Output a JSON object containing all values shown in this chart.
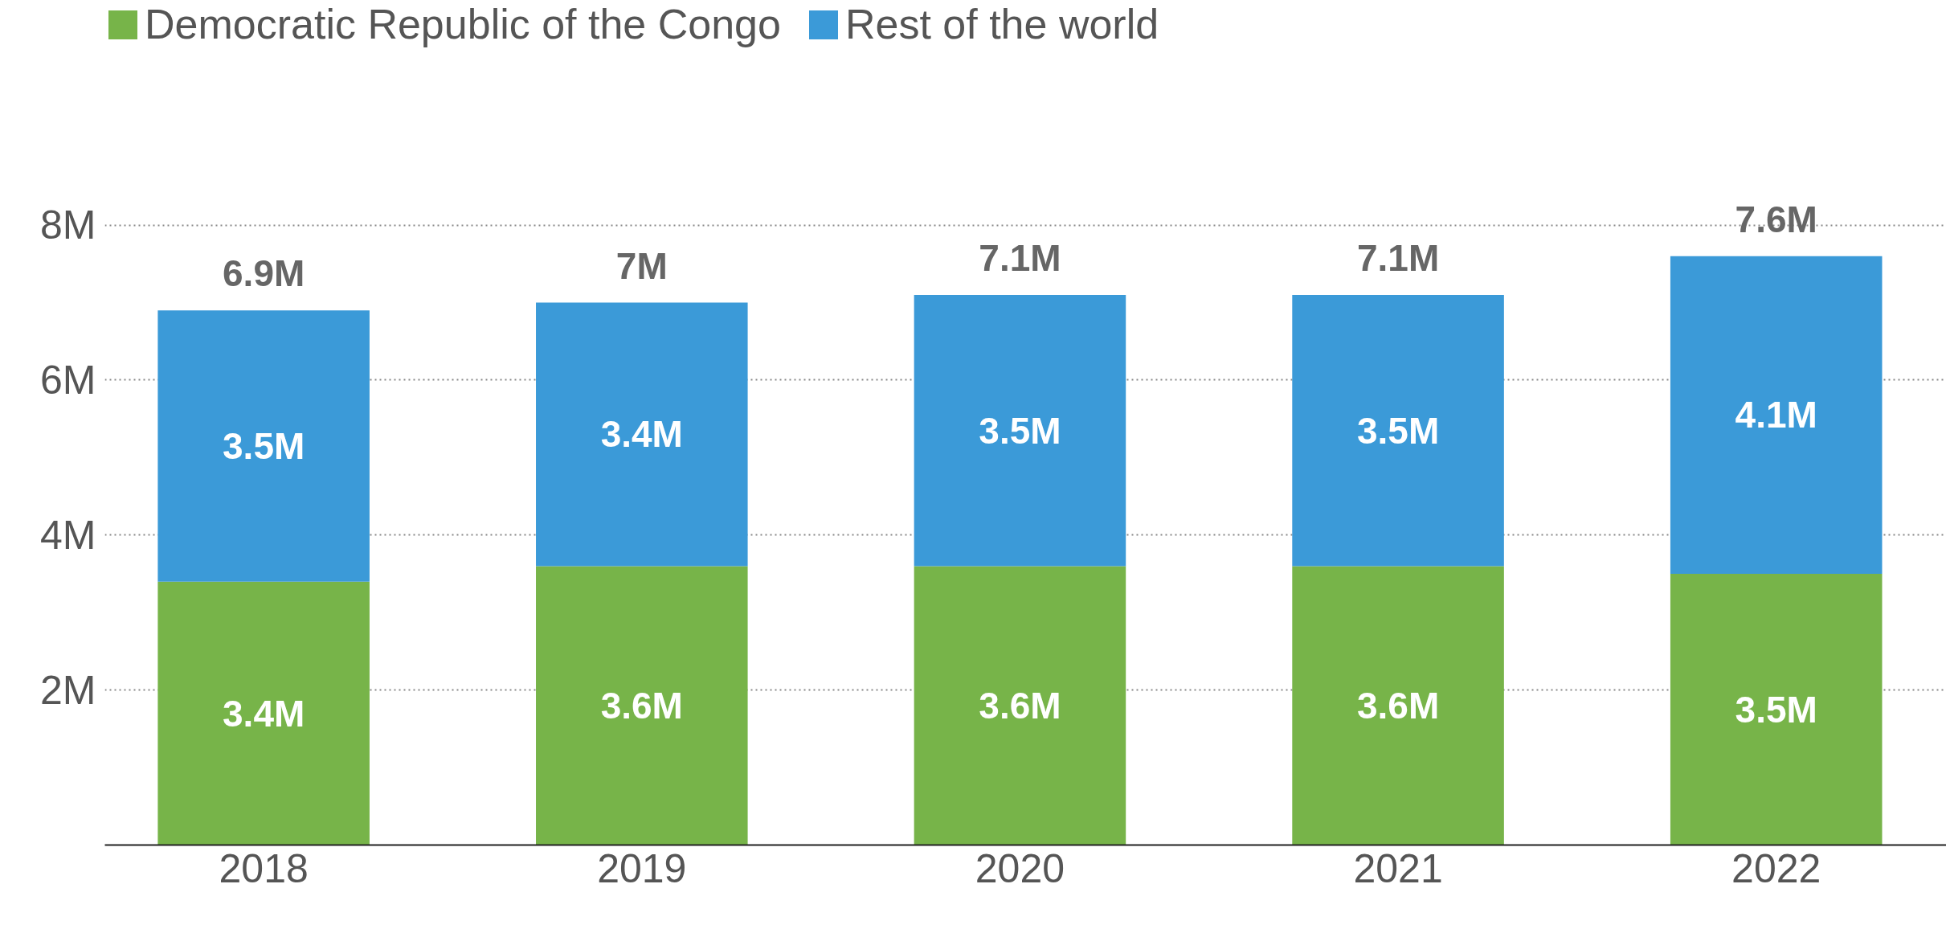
{
  "chart_data": {
    "type": "bar",
    "stacked": true,
    "categories": [
      "2018",
      "2019",
      "2020",
      "2021",
      "2022"
    ],
    "series": [
      {
        "name": "Democratic Republic of the Congo",
        "color": "#77b449",
        "values": [
          3.4,
          3.6,
          3.6,
          3.6,
          3.5
        ],
        "value_labels": [
          "3.4M",
          "3.6M",
          "3.6M",
          "3.6M",
          "3.5M"
        ]
      },
      {
        "name": "Rest of the world",
        "color": "#3b9ad8",
        "values": [
          3.5,
          3.4,
          3.5,
          3.5,
          4.1
        ],
        "value_labels": [
          "3.5M",
          "3.4M",
          "3.5M",
          "3.5M",
          "4.1M"
        ]
      }
    ],
    "totals": [
      "6.9M",
      "7M",
      "7.1M",
      "7.1M",
      "7.6M"
    ],
    "ylim": [
      0,
      10.9
    ],
    "yticks": [
      {
        "value": 2,
        "label": "2M"
      },
      {
        "value": 4,
        "label": "4M"
      },
      {
        "value": 6,
        "label": "6M"
      },
      {
        "value": 8,
        "label": "8M"
      }
    ],
    "grid": "y",
    "legend": "top left"
  }
}
